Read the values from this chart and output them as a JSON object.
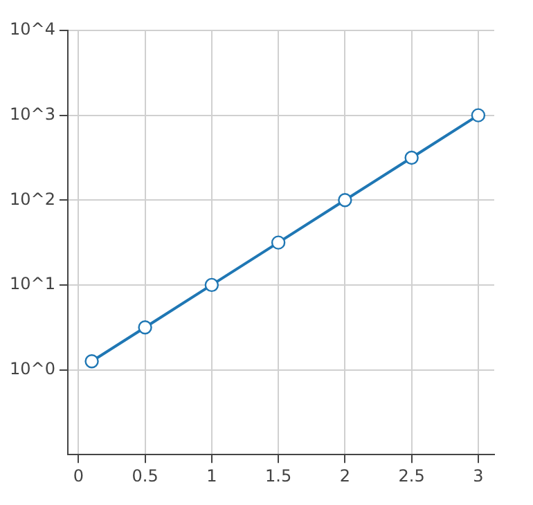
{
  "chart_data": {
    "type": "line",
    "x": [
      0.1,
      0.5,
      1,
      1.5,
      2,
      2.5,
      3
    ],
    "series": [
      {
        "color": "#1f77b4",
        "values": [
          1.26,
          3.16,
          10,
          31.6,
          100,
          316,
          1000
        ]
      }
    ],
    "log": "y",
    "ylim": [
      0.1,
      10000
    ],
    "yticks": [
      {
        "value": 1,
        "label": "10^0"
      },
      {
        "value": 10,
        "label": "10^1"
      },
      {
        "value": 100,
        "label": "10^2"
      },
      {
        "value": 1000,
        "label": "10^3"
      },
      {
        "value": 10000,
        "label": "10^4"
      }
    ],
    "xlim": [
      -0.08,
      3.12
    ],
    "xticks": [
      0,
      0.5,
      1,
      1.5,
      2,
      2.5,
      3
    ],
    "grid": true,
    "marker": "circle",
    "line_style": "solid",
    "legend": false
  }
}
